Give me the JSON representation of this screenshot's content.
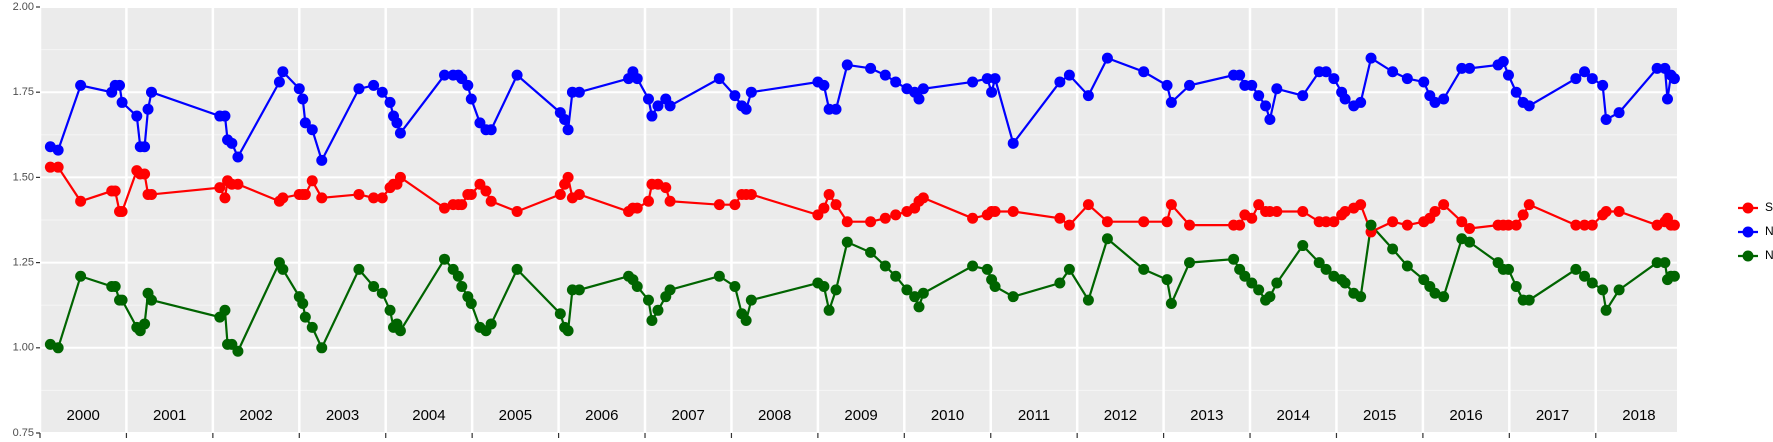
{
  "chart_data": {
    "type": "line",
    "x": [
      2000.12,
      2000.21,
      2000.47,
      2000.83,
      2000.87,
      2000.92,
      2000.95,
      2001.12,
      2001.16,
      2001.21,
      2001.25,
      2001.29,
      2002.08,
      2002.14,
      2002.17,
      2002.22,
      2002.29,
      2002.77,
      2002.81,
      2003.0,
      2003.04,
      2003.07,
      2003.15,
      2003.26,
      2003.69,
      2003.86,
      2003.96,
      2004.05,
      2004.09,
      2004.13,
      2004.17,
      2004.68,
      2004.78,
      2004.84,
      2004.88,
      2004.95,
      2004.99,
      2005.09,
      2005.16,
      2005.22,
      2005.52,
      2006.02,
      2006.07,
      2006.11,
      2006.16,
      2006.24,
      2006.81,
      2006.86,
      2006.91,
      2007.04,
      2007.08,
      2007.15,
      2007.24,
      2007.29,
      2007.86,
      2008.04,
      2008.12,
      2008.17,
      2008.23,
      2009.0,
      2009.07,
      2009.13,
      2009.21,
      2009.34,
      2009.61,
      2009.78,
      2009.9,
      2010.03,
      2010.12,
      2010.17,
      2010.22,
      2010.79,
      2010.96,
      2011.01,
      2011.05,
      2011.26,
      2011.8,
      2011.91,
      2012.13,
      2012.35,
      2012.77,
      2013.04,
      2013.09,
      2013.3,
      2013.81,
      2013.88,
      2013.94,
      2014.02,
      2014.1,
      2014.18,
      2014.23,
      2014.31,
      2014.61,
      2014.8,
      2014.88,
      2014.97,
      2015.06,
      2015.1,
      2015.2,
      2015.28,
      2015.4,
      2015.65,
      2015.82,
      2016.01,
      2016.08,
      2016.14,
      2016.24,
      2016.45,
      2016.54,
      2016.87,
      2016.93,
      2016.99,
      2017.08,
      2017.16,
      2017.23,
      2017.77,
      2017.87,
      2017.96,
      2018.08,
      2018.12,
      2018.27,
      2018.71,
      2018.8,
      2018.83,
      2018.87,
      2018.91
    ],
    "series": [
      {
        "name": "SWIR",
        "color": "#ff0000",
        "values": [
          1.53,
          1.53,
          1.43,
          1.46,
          1.46,
          1.4,
          1.4,
          1.52,
          1.51,
          1.51,
          1.45,
          1.45,
          1.47,
          1.44,
          1.49,
          1.48,
          1.48,
          1.43,
          1.44,
          1.45,
          1.45,
          1.45,
          1.49,
          1.44,
          1.45,
          1.44,
          1.44,
          1.47,
          1.48,
          1.48,
          1.5,
          1.41,
          1.42,
          1.42,
          1.42,
          1.45,
          1.45,
          1.48,
          1.46,
          1.43,
          1.4,
          1.45,
          1.48,
          1.5,
          1.44,
          1.45,
          1.4,
          1.41,
          1.41,
          1.43,
          1.48,
          1.48,
          1.47,
          1.43,
          1.42,
          1.42,
          1.45,
          1.45,
          1.45,
          1.39,
          1.41,
          1.45,
          1.42,
          1.37,
          1.37,
          1.38,
          1.39,
          1.4,
          1.41,
          1.43,
          1.44,
          1.38,
          1.39,
          1.4,
          1.4,
          1.4,
          1.38,
          1.36,
          1.42,
          1.37,
          1.37,
          1.37,
          1.42,
          1.36,
          1.36,
          1.36,
          1.39,
          1.38,
          1.42,
          1.4,
          1.4,
          1.4,
          1.4,
          1.37,
          1.37,
          1.37,
          1.39,
          1.4,
          1.41,
          1.42,
          1.34,
          1.37,
          1.36,
          1.37,
          1.38,
          1.4,
          1.42,
          1.37,
          1.35,
          1.36,
          1.36,
          1.36,
          1.36,
          1.39,
          1.42,
          1.36,
          1.36,
          1.36,
          1.39,
          1.4,
          1.4,
          1.36,
          1.37,
          1.38,
          1.36,
          1.36
        ]
      },
      {
        "name": "NDVI",
        "color": "#0000ff",
        "values": [
          1.59,
          1.58,
          1.77,
          1.75,
          1.77,
          1.77,
          1.72,
          1.68,
          1.59,
          1.59,
          1.7,
          1.75,
          1.68,
          1.68,
          1.61,
          1.6,
          1.56,
          1.78,
          1.81,
          1.76,
          1.73,
          1.66,
          1.64,
          1.55,
          1.76,
          1.77,
          1.75,
          1.72,
          1.68,
          1.66,
          1.63,
          1.8,
          1.8,
          1.8,
          1.79,
          1.77,
          1.73,
          1.66,
          1.64,
          1.64,
          1.8,
          1.69,
          1.67,
          1.64,
          1.75,
          1.75,
          1.79,
          1.81,
          1.79,
          1.73,
          1.68,
          1.71,
          1.73,
          1.71,
          1.79,
          1.74,
          1.71,
          1.7,
          1.75,
          1.78,
          1.77,
          1.7,
          1.7,
          1.83,
          1.82,
          1.8,
          1.78,
          1.76,
          1.75,
          1.73,
          1.76,
          1.78,
          1.79,
          1.75,
          1.79,
          1.6,
          1.78,
          1.8,
          1.74,
          1.85,
          1.81,
          1.77,
          1.72,
          1.77,
          1.8,
          1.8,
          1.77,
          1.77,
          1.74,
          1.71,
          1.67,
          1.76,
          1.74,
          1.81,
          1.81,
          1.79,
          1.75,
          1.73,
          1.71,
          1.72,
          1.85,
          1.81,
          1.79,
          1.78,
          1.74,
          1.72,
          1.73,
          1.82,
          1.82,
          1.83,
          1.84,
          1.8,
          1.75,
          1.72,
          1.71,
          1.79,
          1.81,
          1.79,
          1.77,
          1.67,
          1.69,
          1.82,
          1.82,
          1.73,
          1.8,
          1.79
        ]
      },
      {
        "name": "NDWI",
        "color": "#006400",
        "values": [
          1.01,
          1.0,
          1.21,
          1.18,
          1.18,
          1.14,
          1.14,
          1.06,
          1.05,
          1.07,
          1.16,
          1.14,
          1.09,
          1.11,
          1.01,
          1.01,
          0.99,
          1.25,
          1.23,
          1.15,
          1.13,
          1.09,
          1.06,
          1.0,
          1.23,
          1.18,
          1.16,
          1.11,
          1.06,
          1.07,
          1.05,
          1.26,
          1.23,
          1.21,
          1.18,
          1.15,
          1.13,
          1.06,
          1.05,
          1.07,
          1.23,
          1.1,
          1.06,
          1.05,
          1.17,
          1.17,
          1.21,
          1.2,
          1.18,
          1.14,
          1.08,
          1.11,
          1.15,
          1.17,
          1.21,
          1.18,
          1.1,
          1.08,
          1.14,
          1.19,
          1.18,
          1.11,
          1.17,
          1.31,
          1.28,
          1.24,
          1.21,
          1.17,
          1.15,
          1.12,
          1.16,
          1.24,
          1.23,
          1.2,
          1.18,
          1.15,
          1.19,
          1.23,
          1.14,
          1.32,
          1.23,
          1.2,
          1.13,
          1.25,
          1.26,
          1.23,
          1.21,
          1.19,
          1.17,
          1.14,
          1.15,
          1.19,
          1.3,
          1.25,
          1.23,
          1.21,
          1.2,
          1.19,
          1.16,
          1.15,
          1.36,
          1.29,
          1.24,
          1.2,
          1.18,
          1.16,
          1.15,
          1.32,
          1.31,
          1.25,
          1.23,
          1.23,
          1.18,
          1.14,
          1.14,
          1.23,
          1.21,
          1.19,
          1.17,
          1.11,
          1.17,
          1.25,
          1.25,
          1.2,
          1.21,
          1.21
        ]
      }
    ],
    "xlim": [
      2000,
      2018.94
    ],
    "xgrid": [
      2000,
      2001,
      2002,
      2003,
      2004,
      2005,
      2006,
      2007,
      2008,
      2009,
      2010,
      2011,
      2012,
      2013,
      2014,
      2015,
      2016,
      2017,
      2018
    ],
    "xticks": [
      {
        "value": 2000.5,
        "label": "2000"
      },
      {
        "value": 2001.5,
        "label": "2001"
      },
      {
        "value": 2002.5,
        "label": "2002"
      },
      {
        "value": 2003.5,
        "label": "2003"
      },
      {
        "value": 2004.5,
        "label": "2004"
      },
      {
        "value": 2005.5,
        "label": "2005"
      },
      {
        "value": 2006.5,
        "label": "2006"
      },
      {
        "value": 2007.5,
        "label": "2007"
      },
      {
        "value": 2008.5,
        "label": "2008"
      },
      {
        "value": 2009.5,
        "label": "2009"
      },
      {
        "value": 2010.5,
        "label": "2010"
      },
      {
        "value": 2011.5,
        "label": "2011"
      },
      {
        "value": 2012.5,
        "label": "2012"
      },
      {
        "value": 2013.5,
        "label": "2013"
      },
      {
        "value": 2014.5,
        "label": "2014"
      },
      {
        "value": 2015.5,
        "label": "2015"
      },
      {
        "value": 2016.5,
        "label": "2016"
      },
      {
        "value": 2017.5,
        "label": "2017"
      },
      {
        "value": 2018.5,
        "label": "2018"
      }
    ],
    "ylim": [
      0.75,
      2.0
    ],
    "yticks": [
      {
        "value": 0.75,
        "label": "0.75"
      },
      {
        "value": 1.0,
        "label": "1.00"
      },
      {
        "value": 1.25,
        "label": "1.25"
      },
      {
        "value": 1.5,
        "label": "1.50"
      },
      {
        "value": 1.75,
        "label": "1.75"
      },
      {
        "value": 2.0,
        "label": "2.00"
      }
    ],
    "yminor": [
      0.875,
      1.125,
      1.375,
      1.625,
      1.875
    ],
    "grid": true,
    "legend": "right"
  }
}
